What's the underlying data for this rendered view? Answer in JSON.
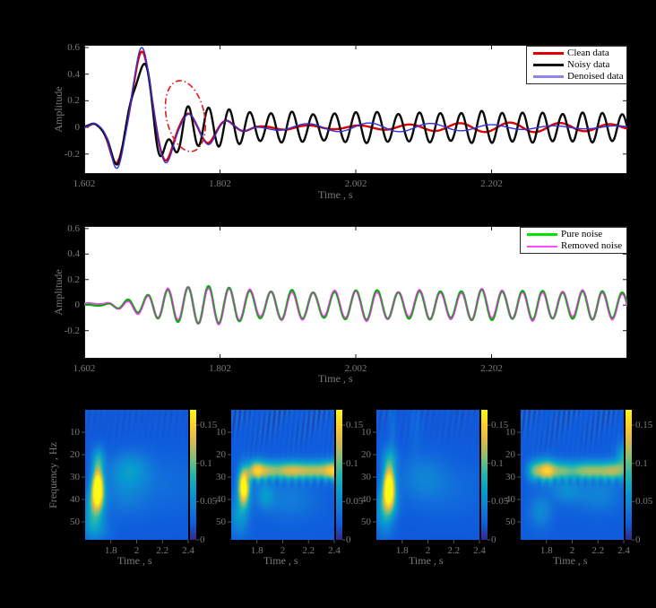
{
  "figure": {
    "background": "#000000",
    "plot_background": "#ffffff",
    "tick_color": "#1a1a1a",
    "label_color": "#7a7a7a",
    "legend_border": "#2b2b2b",
    "legend_text_color": "#000000"
  },
  "colormap": {
    "name": "parula",
    "stops": [
      [
        0.0,
        53,
        42,
        135
      ],
      [
        0.125,
        15,
        92,
        221
      ],
      [
        0.25,
        18,
        125,
        216
      ],
      [
        0.375,
        7,
        156,
        207
      ],
      [
        0.5,
        33,
        181,
        176
      ],
      [
        0.625,
        124,
        191,
        123
      ],
      [
        0.75,
        213,
        185,
        78
      ],
      [
        0.875,
        252,
        206,
        46
      ],
      [
        1.0,
        249,
        251,
        21
      ]
    ]
  },
  "chart_data": [
    {
      "id": "denoise-comparison",
      "type": "line",
      "xlabel": "Time , s",
      "ylabel": "Amplitude",
      "xlim": [
        1.602,
        2.402
      ],
      "ylim": [
        -0.35,
        0.62
      ],
      "xticks": [
        {
          "v": 1.602,
          "label": "1.602"
        },
        {
          "v": 1.802,
          "label": "1.802"
        },
        {
          "v": 2.002,
          "label": "2.002"
        },
        {
          "v": 2.202,
          "label": "2.202"
        }
      ],
      "yticks": [
        {
          "v": 0.6,
          "label": "0.6"
        },
        {
          "v": 0.4,
          "label": "0.4"
        },
        {
          "v": 0.2,
          "label": "0.2"
        },
        {
          "v": 0,
          "label": "0"
        },
        {
          "v": -0.2,
          "label": "-0.2"
        }
      ],
      "legend_position": "top-right",
      "series": [
        {
          "name": "Clean data",
          "color": "#de0000",
          "legend_color": "#de0000",
          "width": 2.4
        },
        {
          "name": "Noisy data",
          "color": "#0a0a0a",
          "legend_color": "#111111",
          "width": 2.4
        },
        {
          "name": "Denoised data",
          "color": "#3232dd",
          "legend_color": "#8c86ea",
          "width": 1.4
        }
      ],
      "annotation_ellipse": {
        "color": "#e31a1a",
        "style": "dash-dot",
        "t_center": 1.751,
        "v_center": 0.085,
        "t_radius": 0.028,
        "v_radius": 0.27,
        "rotation_deg": -12
      },
      "synthesis": {
        "clean_components": [
          [
            0.028,
            1.6165,
            0.006
          ],
          [
            -0.27,
            1.649,
            0.0095
          ],
          [
            0.57,
            1.687,
            0.0115
          ],
          [
            -0.255,
            1.7215,
            0.01
          ],
          [
            0.105,
            1.755,
            0.009
          ],
          [
            -0.118,
            1.784,
            0.009
          ],
          [
            0.052,
            1.811,
            0.0085
          ],
          [
            -0.028,
            1.837,
            0.0085
          ]
        ],
        "clean_tail": {
          "amp": 0.025,
          "freq": 13.5,
          "start": 1.84,
          "mod_amp": 0.45,
          "mod_freq": 1.9,
          "phase": 0
        },
        "denoised_components": [
          [
            0.03,
            1.6165,
            0.006
          ],
          [
            -0.31,
            1.65,
            0.009
          ],
          [
            0.6,
            1.6868,
            0.0112
          ],
          [
            -0.27,
            1.7222,
            0.0098
          ],
          [
            0.1,
            1.756,
            0.0085
          ],
          [
            -0.13,
            1.785,
            0.0088
          ],
          [
            0.05,
            1.8115,
            0.0085
          ],
          [
            -0.03,
            1.838,
            0.0085
          ]
        ],
        "denoised_tail": {
          "amp": 0.022,
          "freq": 11.0,
          "start": 1.83,
          "mod_amp": 0.5,
          "mod_freq": 1.6,
          "phase": 0.9
        },
        "noisy_base_components": [
          [
            0.03,
            1.617,
            0.0065
          ],
          [
            -0.26,
            1.6495,
            0.01
          ],
          [
            0.47,
            1.6865,
            0.012
          ],
          [
            -0.23,
            1.722,
            0.0105
          ],
          [
            0.02,
            1.755,
            0.009
          ]
        ],
        "noise": {
          "carrier_hz": 33,
          "phase_mod": [
            0.9,
            1.3
          ],
          "envelope": [
            [
              1.602,
              0.004
            ],
            [
              1.628,
              0.004
            ],
            [
              1.655,
              0.03
            ],
            [
              1.69,
              0.07
            ],
            [
              1.72,
              0.12
            ],
            [
              1.755,
              0.14
            ],
            [
              1.79,
              0.15
            ],
            [
              1.825,
              0.13
            ],
            [
              1.865,
              0.1
            ],
            [
              1.905,
              0.12
            ],
            [
              1.945,
              0.095
            ],
            [
              1.985,
              0.11
            ],
            [
              2.025,
              0.12
            ],
            [
              2.065,
              0.1
            ],
            [
              2.105,
              0.115
            ],
            [
              2.145,
              0.1
            ],
            [
              2.185,
              0.125
            ],
            [
              2.225,
              0.105
            ],
            [
              2.265,
              0.115
            ],
            [
              2.305,
              0.1
            ],
            [
              2.345,
              0.115
            ],
            [
              2.405,
              0.095
            ]
          ]
        }
      }
    },
    {
      "id": "noise-comparison",
      "type": "line",
      "xlabel": "Time , s",
      "ylabel": "Amplitude",
      "xlim": [
        1.602,
        2.402
      ],
      "ylim": [
        -0.42,
        0.62
      ],
      "xticks": [
        {
          "v": 1.602,
          "label": "1.602"
        },
        {
          "v": 1.802,
          "label": "1.802"
        },
        {
          "v": 2.002,
          "label": "2.002"
        },
        {
          "v": 2.202,
          "label": "2.202"
        }
      ],
      "yticks": [
        {
          "v": 0.6,
          "label": "0.6"
        },
        {
          "v": 0.4,
          "label": "0.4"
        },
        {
          "v": 0.2,
          "label": "0.2"
        },
        {
          "v": 0,
          "label": "0"
        },
        {
          "v": -0.2,
          "label": "-0.2"
        }
      ],
      "legend_position": "top-right",
      "series": [
        {
          "name": "Pure noise",
          "color": "#00cc00",
          "legend_color": "#00e400",
          "width": 2.6
        },
        {
          "name": "Removed noise",
          "color": "#f43ff4",
          "legend_color": "#ff4bff",
          "width": 1.5
        }
      ],
      "synthesis": {
        "magenta_scale": 0.97,
        "magenta_detune": {
          "amp": 0.015,
          "freq": 8.5,
          "phase": 0.7
        }
      }
    },
    {
      "id": "spectrogram-clean",
      "type": "heatmap",
      "xlabel": "Time , s",
      "ylabel": "Frequency , Hz",
      "xlim": [
        1.6,
        2.4
      ],
      "flim": [
        0,
        58
      ],
      "xticks": [
        {
          "v": 1.8,
          "label": "1.8"
        },
        {
          "v": 2.0,
          "label": "2"
        },
        {
          "v": 2.2,
          "label": "2.2"
        },
        {
          "v": 2.4,
          "label": "2.4"
        }
      ],
      "fticks": [
        {
          "v": 10,
          "label": "10"
        },
        {
          "v": 20,
          "label": "20"
        },
        {
          "v": 30,
          "label": "30"
        },
        {
          "v": 40,
          "label": "40"
        },
        {
          "v": 50,
          "label": "50"
        }
      ],
      "colorbar_ticks": [
        {
          "v": 0,
          "label": "0"
        },
        {
          "v": 0.05,
          "label": "0.05"
        },
        {
          "v": 0.1,
          "label": "0.1"
        },
        {
          "v": 0.15,
          "label": "0.15"
        }
      ],
      "vmax": 0.17,
      "background_value": 0.02,
      "blobs": [
        [
          1.695,
          34,
          0.03,
          5.5,
          0.175
        ],
        [
          1.685,
          40,
          0.045,
          5,
          0.06
        ],
        [
          1.66,
          47,
          0.05,
          6,
          0.04
        ],
        [
          1.7,
          22,
          0.035,
          4,
          0.05
        ],
        [
          1.95,
          26,
          0.1,
          5,
          0.03
        ],
        [
          1.9,
          35,
          0.12,
          8,
          0.022
        ],
        [
          2.2,
          33,
          0.25,
          10,
          0.012
        ],
        [
          1.68,
          53,
          0.08,
          4,
          0.025
        ]
      ],
      "stripes": {
        "a": 0.004,
        "n": 22,
        "depth": 12
      },
      "dots": null
    },
    {
      "id": "spectrogram-noisy",
      "type": "heatmap",
      "xlabel": "Time , s",
      "ylabel": "",
      "xlim": [
        1.6,
        2.4
      ],
      "flim": [
        0,
        58
      ],
      "xticks": [
        {
          "v": 1.8,
          "label": "1.8"
        },
        {
          "v": 2.0,
          "label": "2"
        },
        {
          "v": 2.2,
          "label": "2.2"
        },
        {
          "v": 2.4,
          "label": "2.4"
        }
      ],
      "fticks": [
        {
          "v": 10,
          "label": "10"
        },
        {
          "v": 20,
          "label": "20"
        },
        {
          "v": 30,
          "label": "30"
        },
        {
          "v": 40,
          "label": "40"
        },
        {
          "v": 50,
          "label": "50"
        }
      ],
      "colorbar_ticks": [
        {
          "v": 0,
          "label": "0"
        },
        {
          "v": 0.05,
          "label": "0.05"
        },
        {
          "v": 0.1,
          "label": "0.1"
        },
        {
          "v": 0.15,
          "label": "0.15"
        }
      ],
      "vmax": 0.17,
      "background_value": 0.022,
      "blobs": [
        [
          1.695,
          34,
          0.03,
          5.5,
          0.175
        ],
        [
          1.66,
          47,
          0.05,
          6,
          0.04
        ],
        [
          1.79,
          27,
          0.045,
          3.2,
          0.115
        ],
        [
          1.88,
          27,
          0.05,
          3,
          0.055
        ],
        [
          2.0,
          27,
          0.09,
          3,
          0.065
        ],
        [
          2.13,
          27,
          0.1,
          3,
          0.07
        ],
        [
          2.3,
          27,
          0.09,
          3,
          0.075
        ],
        [
          2.4,
          27,
          0.05,
          3.2,
          0.085
        ],
        [
          1.86,
          38,
          0.05,
          4,
          0.035
        ],
        [
          2.05,
          40,
          0.15,
          6,
          0.02
        ]
      ],
      "stripes": {
        "a": 0.016,
        "n": 26,
        "depth": 14
      },
      "dots": {
        "f": 31.5,
        "a": -0.022,
        "sf": 1.6,
        "st": 0.012,
        "t0": 1.72,
        "dt": 0.058,
        "n": 12
      }
    },
    {
      "id": "spectrogram-denoised",
      "type": "heatmap",
      "xlabel": "Time , s",
      "ylabel": "",
      "xlim": [
        1.6,
        2.4
      ],
      "flim": [
        0,
        58
      ],
      "xticks": [
        {
          "v": 1.8,
          "label": "1.8"
        },
        {
          "v": 2.0,
          "label": "2"
        },
        {
          "v": 2.2,
          "label": "2.2"
        },
        {
          "v": 2.4,
          "label": "2.4"
        }
      ],
      "fticks": [
        {
          "v": 10,
          "label": "10"
        },
        {
          "v": 20,
          "label": "20"
        },
        {
          "v": 30,
          "label": "30"
        },
        {
          "v": 40,
          "label": "40"
        },
        {
          "v": 50,
          "label": "50"
        }
      ],
      "colorbar_ticks": [
        {
          "v": 0,
          "label": "0"
        },
        {
          "v": 0.05,
          "label": "0.05"
        },
        {
          "v": 0.1,
          "label": "0.1"
        },
        {
          "v": 0.15,
          "label": "0.15"
        }
      ],
      "vmax": 0.17,
      "background_value": 0.02,
      "blobs": [
        [
          1.695,
          34,
          0.032,
          5.8,
          0.175
        ],
        [
          1.685,
          41,
          0.05,
          5,
          0.055
        ],
        [
          1.66,
          48,
          0.05,
          6,
          0.035
        ],
        [
          1.7,
          22,
          0.04,
          4.5,
          0.045
        ],
        [
          1.95,
          30,
          0.12,
          7,
          0.022
        ],
        [
          2.15,
          35,
          0.2,
          9,
          0.012
        ],
        [
          1.72,
          8,
          0.02,
          8,
          0.013
        ],
        [
          1.9,
          8,
          0.03,
          8,
          0.009
        ]
      ],
      "stripes": {
        "a": 0.006,
        "n": 22,
        "depth": 12
      },
      "dots": null
    },
    {
      "id": "spectrogram-removed-noise",
      "type": "heatmap",
      "xlabel": "Time , s",
      "ylabel": "",
      "xlim": [
        1.6,
        2.4
      ],
      "flim": [
        0,
        58
      ],
      "xticks": [
        {
          "v": 1.8,
          "label": "1.8"
        },
        {
          "v": 2.0,
          "label": "2"
        },
        {
          "v": 2.2,
          "label": "2.2"
        },
        {
          "v": 2.4,
          "label": "2.4"
        }
      ],
      "fticks": [
        {
          "v": 10,
          "label": "10"
        },
        {
          "v": 20,
          "label": "20"
        },
        {
          "v": 30,
          "label": "30"
        },
        {
          "v": 40,
          "label": "40"
        },
        {
          "v": 50,
          "label": "50"
        }
      ],
      "colorbar_ticks": [
        {
          "v": 0,
          "label": "0"
        },
        {
          "v": 0.05,
          "label": "0.05"
        },
        {
          "v": 0.1,
          "label": "0.1"
        },
        {
          "v": 0.15,
          "label": "0.15"
        }
      ],
      "vmax": 0.17,
      "background_value": 0.022,
      "blobs": [
        [
          1.8,
          27,
          0.055,
          3.4,
          0.125
        ],
        [
          1.7,
          27,
          0.04,
          3.2,
          0.06
        ],
        [
          1.92,
          27,
          0.05,
          3,
          0.05
        ],
        [
          2.05,
          27,
          0.09,
          3,
          0.06
        ],
        [
          2.2,
          27,
          0.1,
          3,
          0.065
        ],
        [
          2.35,
          27,
          0.08,
          3.2,
          0.07
        ],
        [
          1.95,
          36,
          0.08,
          4,
          0.03
        ],
        [
          2.2,
          38,
          0.12,
          5,
          0.025
        ],
        [
          1.75,
          45,
          0.06,
          5,
          0.03
        ],
        [
          2.4,
          20,
          0.04,
          4,
          0.05
        ]
      ],
      "stripes": {
        "a": 0.015,
        "n": 26,
        "depth": 14
      },
      "dots": {
        "f": 31.5,
        "a": -0.02,
        "sf": 1.5,
        "st": 0.012,
        "t0": 1.74,
        "dt": 0.06,
        "n": 11
      }
    }
  ]
}
